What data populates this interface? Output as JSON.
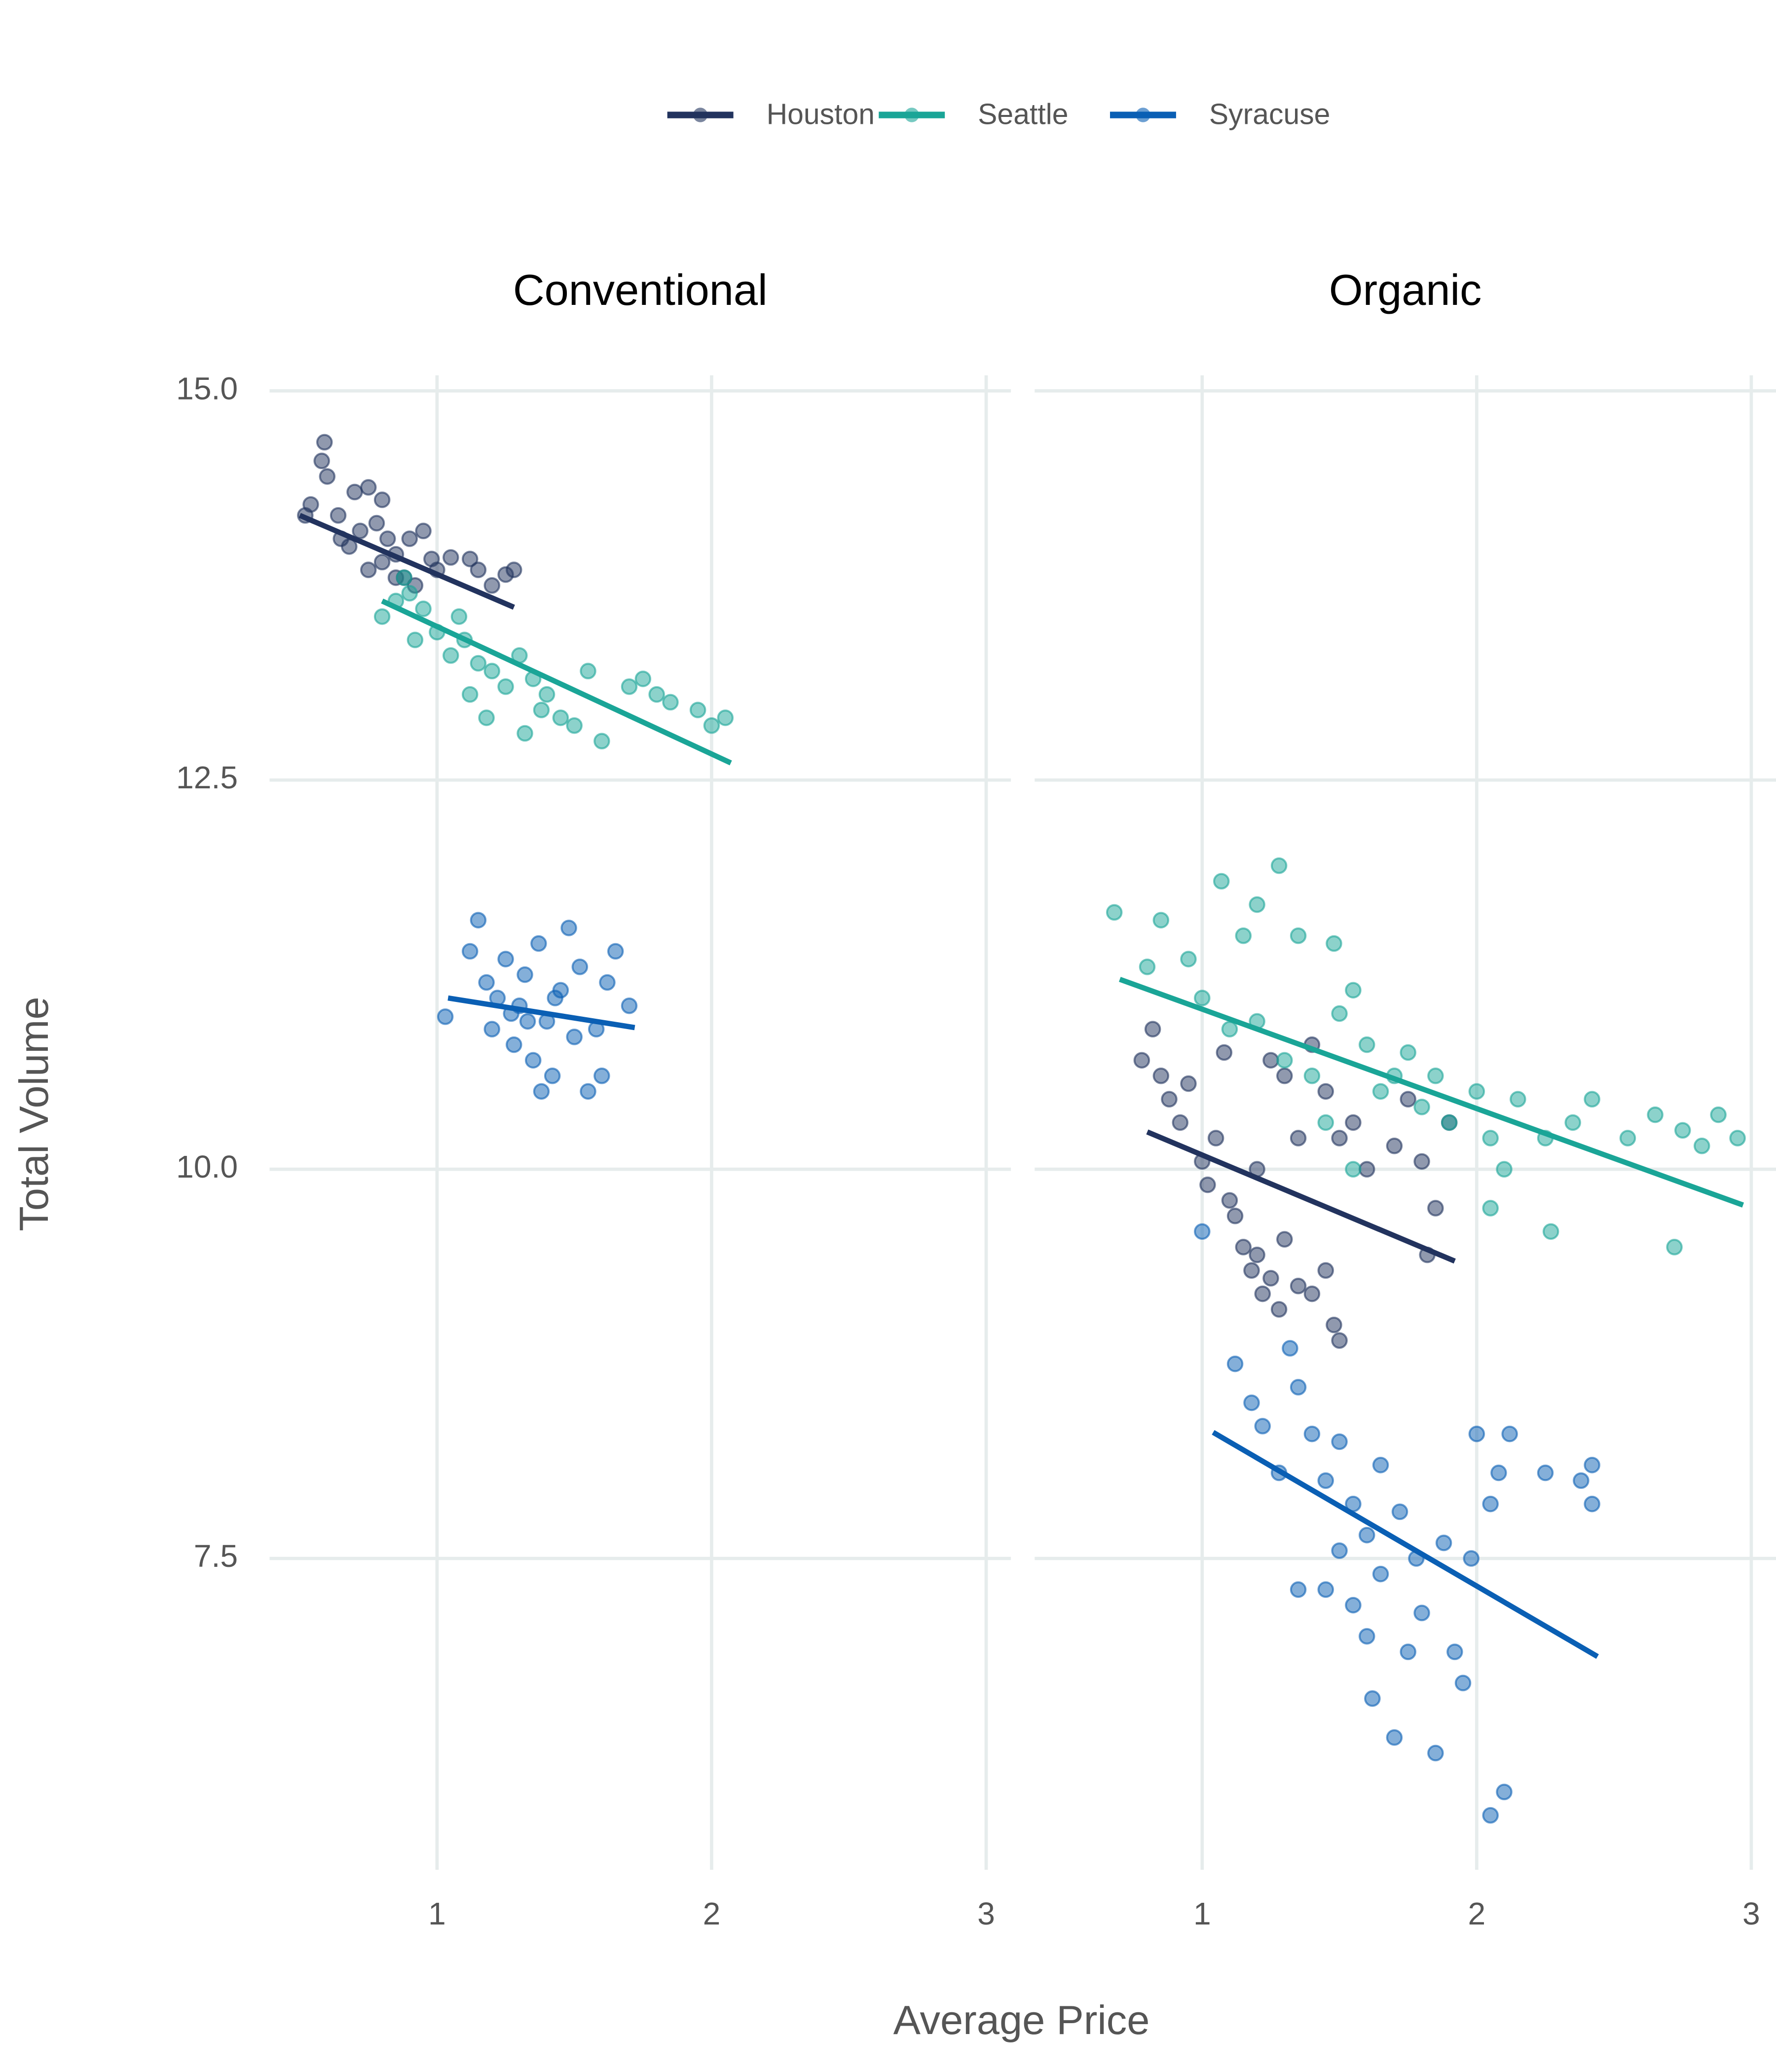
{
  "chart_data": [
    {
      "type": "scatter",
      "title": "Conventional",
      "xlabel": "Average Price",
      "ylabel": "Total Volume",
      "legend": "top",
      "grid": true,
      "xlim": [
        0.39,
        3.09
      ],
      "ylim": [
        5.5,
        15.1
      ],
      "xticks": [
        1,
        2,
        3
      ],
      "yticks": [
        {
          "value": 7.5,
          "label": "7.5"
        },
        {
          "value": 10,
          "label": "10.0"
        },
        {
          "value": 12.5,
          "label": "12.5"
        },
        {
          "value": 15,
          "label": "15.0"
        }
      ],
      "series": [
        {
          "name": "Houston",
          "color": "#22335e",
          "x": [
            0.59,
            0.58,
            0.6,
            0.54,
            0.52,
            0.64,
            0.7,
            0.75,
            0.8,
            0.68,
            0.72,
            0.78,
            0.82,
            0.85,
            0.75,
            0.8,
            0.9,
            0.95,
            0.88,
            0.98,
            1.05,
            1.12,
            1.15,
            1.2,
            1.25,
            1.28,
            0.92,
            0.85,
            0.65,
            1.0
          ],
          "y": [
            14.67,
            14.55,
            14.45,
            14.27,
            14.2,
            14.2,
            14.35,
            14.38,
            14.3,
            14.0,
            14.1,
            14.15,
            14.05,
            13.95,
            13.85,
            13.9,
            14.05,
            14.1,
            13.8,
            13.92,
            13.93,
            13.92,
            13.85,
            13.75,
            13.82,
            13.85,
            13.75,
            13.8,
            14.05,
            13.85
          ],
          "fit": {
            "x": [
              0.5,
              1.28
            ],
            "y": [
              14.2,
              13.61
            ]
          }
        },
        {
          "name": "Seattle",
          "color": "#1aa597",
          "x": [
            0.8,
            0.85,
            0.9,
            0.95,
            1.0,
            0.92,
            1.05,
            1.1,
            1.15,
            1.2,
            1.12,
            1.18,
            1.25,
            1.3,
            1.35,
            1.4,
            1.45,
            1.5,
            1.55,
            1.6,
            1.32,
            1.7,
            1.75,
            1.8,
            1.85,
            1.95,
            2.0,
            2.05,
            1.08,
            1.38,
            0.88
          ],
          "y": [
            13.55,
            13.65,
            13.7,
            13.6,
            13.45,
            13.4,
            13.3,
            13.4,
            13.25,
            13.2,
            13.05,
            12.9,
            13.1,
            13.3,
            13.15,
            13.05,
            12.9,
            12.85,
            13.2,
            12.75,
            12.8,
            13.1,
            13.15,
            13.05,
            13.0,
            12.95,
            12.85,
            12.9,
            13.55,
            12.95,
            13.8
          ],
          "fit": {
            "x": [
              0.8,
              2.07
            ],
            "y": [
              13.65,
              12.61
            ]
          }
        },
        {
          "name": "Syracuse",
          "color": "#0a5fb4",
          "x": [
            1.03,
            1.12,
            1.15,
            1.18,
            1.2,
            1.22,
            1.25,
            1.28,
            1.3,
            1.32,
            1.35,
            1.37,
            1.4,
            1.42,
            1.45,
            1.48,
            1.5,
            1.52,
            1.55,
            1.58,
            1.6,
            1.62,
            1.65,
            1.7,
            1.38,
            1.27,
            1.33,
            1.43
          ],
          "y": [
            10.98,
            11.4,
            11.6,
            11.2,
            10.9,
            11.1,
            11.35,
            10.8,
            11.05,
            11.25,
            10.7,
            11.45,
            10.95,
            10.6,
            11.15,
            11.55,
            10.85,
            11.3,
            10.5,
            10.9,
            10.6,
            11.2,
            11.4,
            11.05,
            10.5,
            11.0,
            10.95,
            11.1
          ],
          "fit": {
            "x": [
              1.04,
              1.72
            ],
            "y": [
              11.1,
              10.91
            ]
          }
        }
      ]
    },
    {
      "type": "scatter",
      "title": "Organic",
      "grid": true,
      "xlim": [
        0.39,
        3.09
      ],
      "ylim": [
        5.5,
        15.1
      ],
      "xticks": [
        1,
        2,
        3
      ],
      "yticks": [
        7.5,
        10,
        12.5,
        15
      ],
      "series": [
        {
          "color": "#22335e",
          "x": [
            0.78,
            0.82,
            0.85,
            0.88,
            0.92,
            0.95,
            1.0,
            1.02,
            1.05,
            1.08,
            1.1,
            1.12,
            1.15,
            1.18,
            1.2,
            1.22,
            1.25,
            1.28,
            1.3,
            1.35,
            1.4,
            1.45,
            1.48,
            1.5,
            1.3,
            1.35,
            1.4,
            1.45,
            1.5,
            1.55,
            1.6,
            1.7,
            1.75,
            1.8,
            1.85,
            1.9,
            1.82,
            1.2,
            1.25
          ],
          "y": [
            10.7,
            10.9,
            10.6,
            10.45,
            10.3,
            10.55,
            10.05,
            9.9,
            10.2,
            10.75,
            9.8,
            9.7,
            9.5,
            9.35,
            9.45,
            9.2,
            9.3,
            9.1,
            9.55,
            9.25,
            9.2,
            9.35,
            9.0,
            8.9,
            10.6,
            10.2,
            10.8,
            10.5,
            10.2,
            10.3,
            10.0,
            10.15,
            10.45,
            10.05,
            9.75,
            10.3,
            9.45,
            10.0,
            10.7
          ],
          "fit": {
            "x": [
              0.8,
              1.92
            ],
            "y": [
              10.24,
              9.41
            ]
          }
        },
        {
          "color": "#1aa597",
          "x": [
            0.68,
            0.8,
            0.85,
            0.95,
            1.0,
            1.07,
            1.15,
            1.2,
            1.28,
            1.35,
            1.48,
            1.1,
            1.2,
            1.3,
            1.4,
            1.5,
            1.55,
            1.6,
            1.65,
            1.7,
            1.75,
            1.8,
            1.85,
            1.9,
            2.0,
            2.05,
            2.1,
            2.15,
            2.25,
            2.35,
            2.42,
            2.55,
            2.65,
            2.75,
            2.82,
            2.88,
            2.95,
            2.72,
            2.27,
            2.05,
            1.55,
            1.45
          ],
          "y": [
            11.65,
            11.3,
            11.6,
            11.35,
            11.1,
            11.85,
            11.5,
            11.7,
            11.95,
            11.5,
            11.45,
            10.9,
            10.95,
            10.7,
            10.6,
            11.0,
            11.15,
            10.8,
            10.5,
            10.6,
            10.75,
            10.4,
            10.6,
            10.3,
            10.5,
            10.2,
            10.0,
            10.45,
            10.2,
            10.3,
            10.45,
            10.2,
            10.35,
            10.25,
            10.15,
            10.35,
            10.2,
            9.5,
            9.6,
            9.75,
            10.0,
            10.3
          ],
          "fit": {
            "x": [
              0.7,
              2.97
            ],
            "y": [
              11.22,
              9.77
            ]
          }
        },
        {
          "color": "#0a5fb4",
          "x": [
            1.0,
            1.12,
            1.18,
            1.22,
            1.28,
            1.32,
            1.35,
            1.4,
            1.45,
            1.5,
            1.55,
            1.45,
            1.5,
            1.55,
            1.6,
            1.62,
            1.65,
            1.7,
            1.72,
            1.75,
            1.8,
            1.85,
            1.88,
            1.92,
            1.98,
            2.0,
            2.05,
            2.08,
            2.1,
            2.05,
            2.12,
            2.25,
            2.38,
            2.42,
            2.42,
            1.65,
            1.6,
            1.78,
            1.95,
            1.35
          ],
          "y": [
            9.6,
            8.75,
            8.5,
            8.35,
            8.05,
            8.85,
            8.6,
            8.3,
            8.0,
            8.25,
            7.85,
            7.3,
            7.55,
            7.2,
            7.0,
            6.6,
            7.4,
            6.35,
            7.8,
            6.9,
            7.15,
            6.25,
            7.6,
            6.9,
            7.5,
            8.3,
            7.85,
            8.05,
            6.0,
            5.85,
            8.3,
            8.05,
            8.0,
            7.85,
            8.1,
            8.1,
            7.65,
            7.5,
            6.7,
            7.3
          ],
          "fit": {
            "x": [
              1.04,
              2.44
            ],
            "y": [
              8.31,
              6.87
            ]
          }
        }
      ]
    }
  ]
}
